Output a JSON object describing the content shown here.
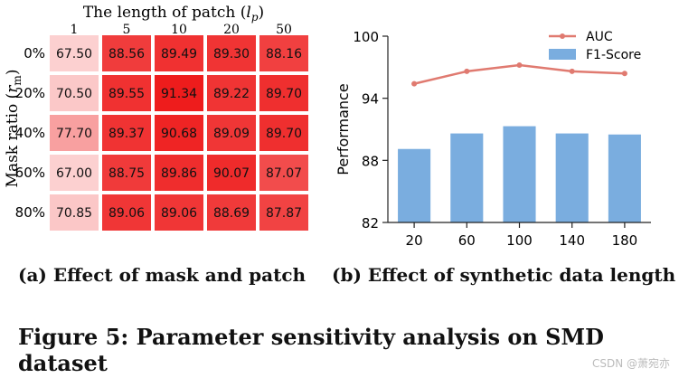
{
  "figure": {
    "caption_a": "(a) Effect of mask and patch",
    "caption_b": "(b) Effect of synthetic data length",
    "figure_caption": "Figure 5: Parameter sensitivity analysis on SMD dataset",
    "watermark": "CSDN @萧宛亦"
  },
  "chart_data": [
    {
      "type": "heatmap",
      "title": "The length of patch (l_p)",
      "xlabel": "The length of patch (l_p)",
      "ylabel": "Mask ratio (r_m)",
      "x_categories": [
        "1",
        "5",
        "10",
        "20",
        "50"
      ],
      "y_categories": [
        "0%",
        "20%",
        "40%",
        "60%",
        "80%"
      ],
      "values": [
        [
          67.5,
          88.56,
          89.49,
          89.3,
          88.16
        ],
        [
          70.5,
          89.55,
          91.34,
          89.22,
          89.7
        ],
        [
          77.7,
          89.37,
          90.68,
          89.09,
          89.7
        ],
        [
          67.0,
          88.75,
          89.86,
          90.07,
          87.07
        ],
        [
          70.85,
          89.06,
          89.06,
          88.69,
          87.87
        ]
      ],
      "colormap": {
        "low": "#fcd0d0",
        "high": "#ee1c1c"
      }
    },
    {
      "type": "bar",
      "categories": [
        "20",
        "60",
        "100",
        "140",
        "180"
      ],
      "series": [
        {
          "name": "AUC",
          "type": "line",
          "color": "#e07a70",
          "values": [
            95.4,
            96.6,
            97.2,
            96.6,
            96.4
          ]
        },
        {
          "name": "F1-Score",
          "type": "bar",
          "color": "#7aaddf",
          "values": [
            89.1,
            90.6,
            91.3,
            90.6,
            90.5
          ]
        }
      ],
      "xlabel": "",
      "ylabel": "Performance",
      "ylim": [
        82,
        100
      ],
      "yticks": [
        82,
        88,
        94,
        100
      ],
      "legend": "top-right"
    }
  ]
}
